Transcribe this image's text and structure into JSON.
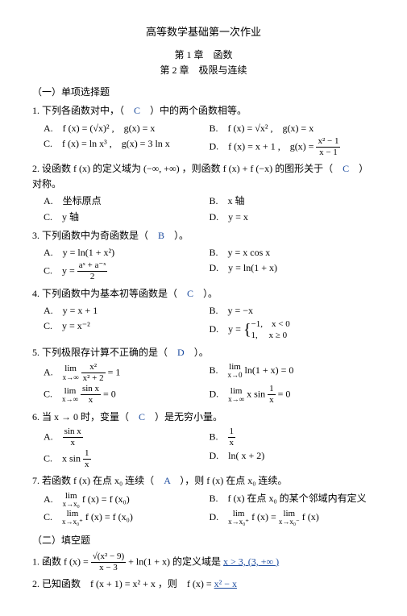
{
  "title": "高等数学基础第一次作业",
  "chapters": {
    "ch1": "第 1 章　函数",
    "ch2": "第 2 章　极限与连续"
  },
  "sec1": {
    "header": "（一）单项选择题",
    "q1": {
      "stem_a": "1. 下列各函数对中，（　",
      "ans": "C",
      "stem_b": "　）中的两个函数相等。",
      "A": "A.　f (x) = (√x)² ,　g(x) = x",
      "B": "B.　f (x) = √x² ,　g(x) = x",
      "C": "C.　f (x) = ln x³ ,　g(x) = 3 ln x",
      "D_pre": "D.　f (x) = x + 1 ,　g(x) = ",
      "D_num": "x² − 1",
      "D_den": "x − 1"
    },
    "q2": {
      "stem_a": "2. 设函数 f (x) 的定义域为 (−∞, +∞) ，则函数 f (x) + f (−x) 的图形关于（　",
      "ans": "C",
      "stem_b": "　）",
      "sym": "对称。",
      "A": "A.　坐标原点",
      "B": "B.　x 轴",
      "C": "C.　y 轴",
      "D": "D.　y = x"
    },
    "q3": {
      "stem_a": "3. 下列函数中为奇函数是（　",
      "ans": "B",
      "stem_b": "　）。",
      "A": "A.　y = ln(1 + x²)",
      "B": "B.　y = x cos x",
      "C_pre": "C.　y = ",
      "C_num": "aˣ + a⁻ˣ",
      "C_den": "2",
      "D": "D.　y = ln(1 + x)"
    },
    "q4": {
      "stem_a": "4. 下列函数中为基本初等函数是（　",
      "ans": "C",
      "stem_b": "　）。",
      "A": "A.　y = x + 1",
      "B": "B.　y = −x",
      "C": "C.　y = x⁻²",
      "D_pre": "D.　y = ",
      "D_p1": "−1,　x < 0",
      "D_p2": " 1,　 x ≥ 0"
    },
    "q5": {
      "stem_a": "5. 下列极限存计算不正确的是（　",
      "ans": "D",
      "stem_b": "　）。",
      "A_lim": "lim",
      "A_sub": "x→∞",
      "A_num": "x²",
      "A_den": "x² + 2",
      "A_eq": " = 1",
      "B_lim": "lim",
      "B_sub": "x→0",
      "B_body": " ln(1 + x) = 0",
      "C_lim": "lim",
      "C_sub": "x→∞",
      "C_num": "sin x",
      "C_den": "x",
      "C_eq": " = 0",
      "D_lim": "lim",
      "D_sub": "x→∞",
      "D_body_pre": " x sin ",
      "D_num": "1",
      "D_den": "x",
      "D_eq": " = 0",
      "A": "A.　",
      "B": "B.　",
      "C": "C.　",
      "D": "D.　"
    },
    "q6": {
      "stem_a": "6. 当 x → 0 时，变量（　",
      "ans": "C",
      "stem_b": "　）是无穷小量。",
      "A": "A.　",
      "A_num": "sin x",
      "A_den": "x",
      "B": "B.　",
      "B_num": "1",
      "B_den": "x",
      "C": "C.　x sin ",
      "C_num": "1",
      "C_den": "x",
      "D": "D.　ln( x + 2)"
    },
    "q7": {
      "stem_a": "7. 若函数 f (x) 在点 x₀ 连续（　",
      "ans": "A",
      "stem_b": "　），则 f (x) 在点 x₀ 连续。",
      "A": "A.　",
      "A_lim": "lim",
      "A_sub": "x→x₀",
      "A_body": " f (x) = f (x₀)",
      "B": "B.　f (x) 在点 x₀ 的某个邻域内有定义",
      "C": "C.　",
      "C_lim": "lim",
      "C_sub": "x→x₀⁺",
      "C_body": " f (x) = f (x₀)",
      "D": "D.　",
      "D_lim1": "lim",
      "D_sub1": "x→x₀⁺",
      "D_mid": " f (x) = ",
      "D_lim2": "lim",
      "D_sub2": "x→x₀⁻",
      "D_end": " f (x)"
    }
  },
  "sec2": {
    "header": "（二）填空题",
    "q1": {
      "pre": "1. 函数 f (x) = ",
      "num": "√(x² − 9)",
      "den": "x − 3",
      "mid": " + ln(1 + x) 的定义域是 ",
      "ans": "x > 3, (3, +∞ )"
    },
    "q2": {
      "pre": "2. 已知函数　f (x + 1) = x² + x ，则　f (x) = ",
      "ans": "x² − x"
    }
  }
}
